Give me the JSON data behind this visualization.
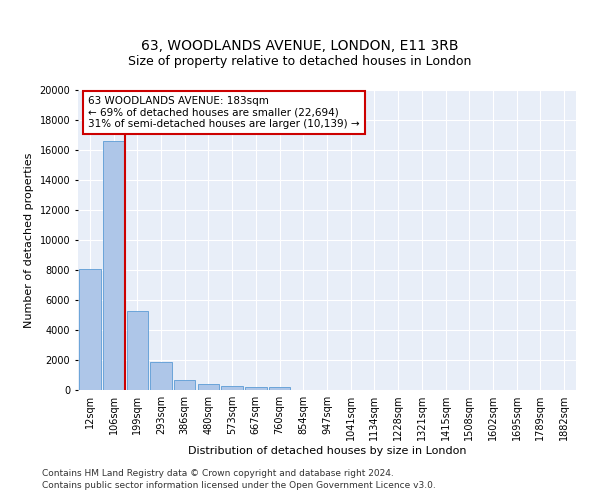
{
  "title": "63, WOODLANDS AVENUE, LONDON, E11 3RB",
  "subtitle": "Size of property relative to detached houses in London",
  "xlabel": "Distribution of detached houses by size in London",
  "ylabel": "Number of detached properties",
  "categories": [
    "12sqm",
    "106sqm",
    "199sqm",
    "293sqm",
    "386sqm",
    "480sqm",
    "573sqm",
    "667sqm",
    "760sqm",
    "854sqm",
    "947sqm",
    "1041sqm",
    "1134sqm",
    "1228sqm",
    "1321sqm",
    "1415sqm",
    "1508sqm",
    "1602sqm",
    "1695sqm",
    "1789sqm",
    "1882sqm"
  ],
  "values": [
    8100,
    16600,
    5300,
    1850,
    700,
    380,
    280,
    220,
    180,
    0,
    0,
    0,
    0,
    0,
    0,
    0,
    0,
    0,
    0,
    0,
    0
  ],
  "bar_color": "#aec6e8",
  "bar_edge_color": "#5b9bd5",
  "annotation_text_line1": "63 WOODLANDS AVENUE: 183sqm",
  "annotation_text_line2": "← 69% of detached houses are smaller (22,694)",
  "annotation_text_line3": "31% of semi-detached houses are larger (10,139) →",
  "annotation_box_color": "#ffffff",
  "annotation_box_edge_color": "#cc0000",
  "vline_color": "#cc0000",
  "ylim": [
    0,
    20000
  ],
  "yticks": [
    0,
    2000,
    4000,
    6000,
    8000,
    10000,
    12000,
    14000,
    16000,
    18000,
    20000
  ],
  "footnote1": "Contains HM Land Registry data © Crown copyright and database right 2024.",
  "footnote2": "Contains public sector information licensed under the Open Government Licence v3.0.",
  "background_color": "#e8eef8",
  "title_fontsize": 10,
  "subtitle_fontsize": 9,
  "axis_label_fontsize": 8,
  "tick_fontsize": 7,
  "annotation_fontsize": 7.5,
  "footnote_fontsize": 6.5
}
